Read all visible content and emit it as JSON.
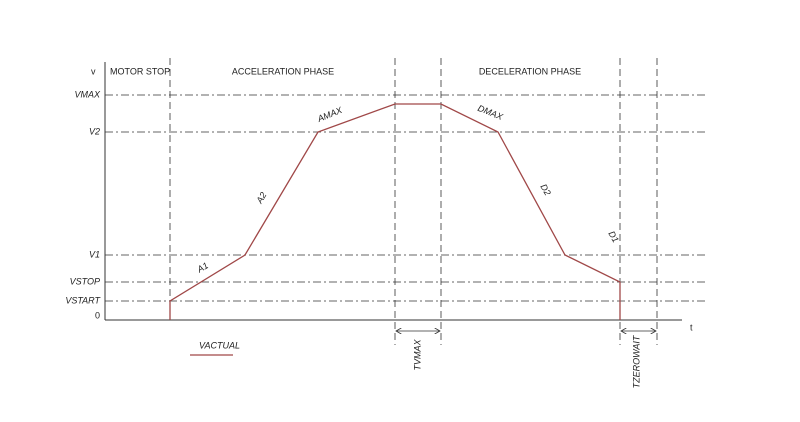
{
  "axes": {
    "y": "v",
    "x": "t"
  },
  "levels": [
    "VMAX",
    "V2",
    "V1",
    "VSTOP",
    "VSTART",
    "0"
  ],
  "phases": [
    "MOTOR STOP",
    "ACCELERATION PHASE",
    "DECELERATION PHASE"
  ],
  "segments": [
    "A1",
    "A2",
    "AMAX",
    "DMAX",
    "D2",
    "D1"
  ],
  "intervals": [
    "TVMAX",
    "TZEROWAIT"
  ],
  "legend": "VACTUAL"
}
